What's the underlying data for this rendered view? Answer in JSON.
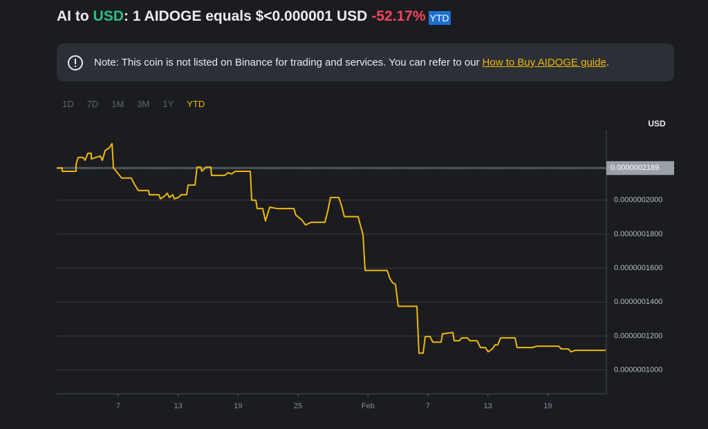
{
  "header": {
    "title": [
      "AI to",
      "USD",
      ": 1 AIDOGE equals $<0.000001 USD",
      "-52.17%",
      "YTD"
    ]
  },
  "note": {
    "text": "Note: This coin is not listed on Binance for trading and services. You can refer to our",
    "link": "How to Buy AIDOGE guide",
    "end": "."
  },
  "tabs": {
    "items": [
      "1D",
      "7D",
      "1M",
      "3M",
      "1Y",
      "YTD"
    ],
    "active": 5
  },
  "chart_data": {
    "type": "line",
    "y_axis_label": "USD",
    "series": [
      {
        "color": "#f0b90b",
        "x": [
          0.84,
          1.39,
          1.39,
          2.78,
          2.78,
          2.99,
          3.47,
          3.68,
          3.96,
          4.3,
          4.3,
          5.2,
          5.41,
          5.69,
          6.1,
          6.38,
          6.52,
          7.35,
          8.31,
          8.66,
          9.01,
          10.04,
          10.11,
          11.08,
          11.22,
          11.64,
          11.91,
          12.12,
          12.47,
          12.61,
          13.02,
          13.3,
          13.85,
          13.99,
          14.68,
          14.89,
          15.24,
          15.37,
          15.79,
          16.27,
          16.34,
          17.66,
          18.0,
          18.35,
          18.7,
          20.22,
          20.36,
          20.77,
          20.91,
          21.46,
          21.74,
          22.16,
          22.85,
          24.58,
          24.79,
          25.34,
          25.75,
          26.31,
          26.72,
          27.69,
          27.97,
          28.25,
          29.08,
          29.35,
          29.63,
          31.01,
          31.5,
          31.71,
          33.92,
          34.2,
          34.47,
          34.75,
          35.03,
          36.9,
          37.1,
          37.52,
          37.73,
          38.21,
          38.49,
          39.32,
          39.46,
          40.49,
          40.63,
          41.12,
          41.39,
          41.95,
          42.22,
          42.92,
          43.26,
          43.75,
          44.02,
          44.44,
          44.72,
          44.99,
          45.27,
          46.72,
          46.93,
          48.45,
          48.87,
          51.08,
          51.36,
          52.05,
          52.33,
          52.74,
          55.79
        ],
        "values": [
          2.19e-07,
          2.19e-07,
          2.17e-07,
          2.17e-07,
          2.211e-07,
          2.252e-07,
          2.252e-07,
          2.235e-07,
          2.276e-07,
          2.276e-07,
          2.243e-07,
          2.26e-07,
          2.235e-07,
          2.292e-07,
          2.308e-07,
          2.333e-07,
          2.191e-07,
          2.13e-07,
          2.13e-07,
          2.089e-07,
          2.057e-07,
          2.057e-07,
          2.032e-07,
          2.032e-07,
          2.008e-07,
          2.024e-07,
          2.041e-07,
          2.016e-07,
          2.032e-07,
          2.008e-07,
          2.016e-07,
          2.032e-07,
          2.032e-07,
          2.089e-07,
          2.089e-07,
          2.195e-07,
          2.195e-07,
          2.17e-07,
          2.195e-07,
          2.195e-07,
          2.146e-07,
          2.146e-07,
          2.162e-07,
          2.154e-07,
          2.17e-07,
          2.17e-07,
          2e-07,
          2e-07,
          1.951e-07,
          1.951e-07,
          1.878e-07,
          1.959e-07,
          1.951e-07,
          1.951e-07,
          1.911e-07,
          1.886e-07,
          1.854e-07,
          1.87e-07,
          1.87e-07,
          1.87e-07,
          1.935e-07,
          2.016e-07,
          2.016e-07,
          1.968e-07,
          1.903e-07,
          1.903e-07,
          1.797e-07,
          1.586e-07,
          1.586e-07,
          1.538e-07,
          1.513e-07,
          1.505e-07,
          1.375e-07,
          1.375e-07,
          1.099e-07,
          1.099e-07,
          1.197e-07,
          1.197e-07,
          1.164e-07,
          1.164e-07,
          1.213e-07,
          1.221e-07,
          1.172e-07,
          1.172e-07,
          1.189e-07,
          1.189e-07,
          1.172e-07,
          1.172e-07,
          1.132e-07,
          1.132e-07,
          1.107e-07,
          1.124e-07,
          1.148e-07,
          1.148e-07,
          1.189e-07,
          1.189e-07,
          1.132e-07,
          1.132e-07,
          1.14e-07,
          1.14e-07,
          1.124e-07,
          1.124e-07,
          1.107e-07,
          1.116e-07,
          1.116e-07
        ]
      }
    ],
    "last_price": {
      "value": 2.189e-07,
      "label": "0.0000002189"
    },
    "xlim": [
      0.84,
      55.86
    ],
    "xticks": [
      7,
      13,
      19,
      25,
      {
        "value": 32,
        "label": "Feb"
      },
      {
        "value": 38,
        "label": "7"
      },
      {
        "value": 44,
        "label": "13"
      },
      {
        "value": 50,
        "label": "19"
      }
    ],
    "ylim": [
      8.6e-08,
      2.414e-07
    ],
    "yticks": [
      {
        "value": 1e-07,
        "label": "0.0000001000"
      },
      {
        "value": 1.2e-07,
        "label": "0.0000001200"
      },
      {
        "value": 1.4e-07,
        "label": "0.0000001400"
      },
      {
        "value": 1.6e-07,
        "label": "0.0000001600"
      },
      {
        "value": 1.8e-07,
        "label": "0.0000001800"
      },
      {
        "value": 2e-07,
        "label": "0.0000002000"
      }
    ],
    "grid": true
  }
}
